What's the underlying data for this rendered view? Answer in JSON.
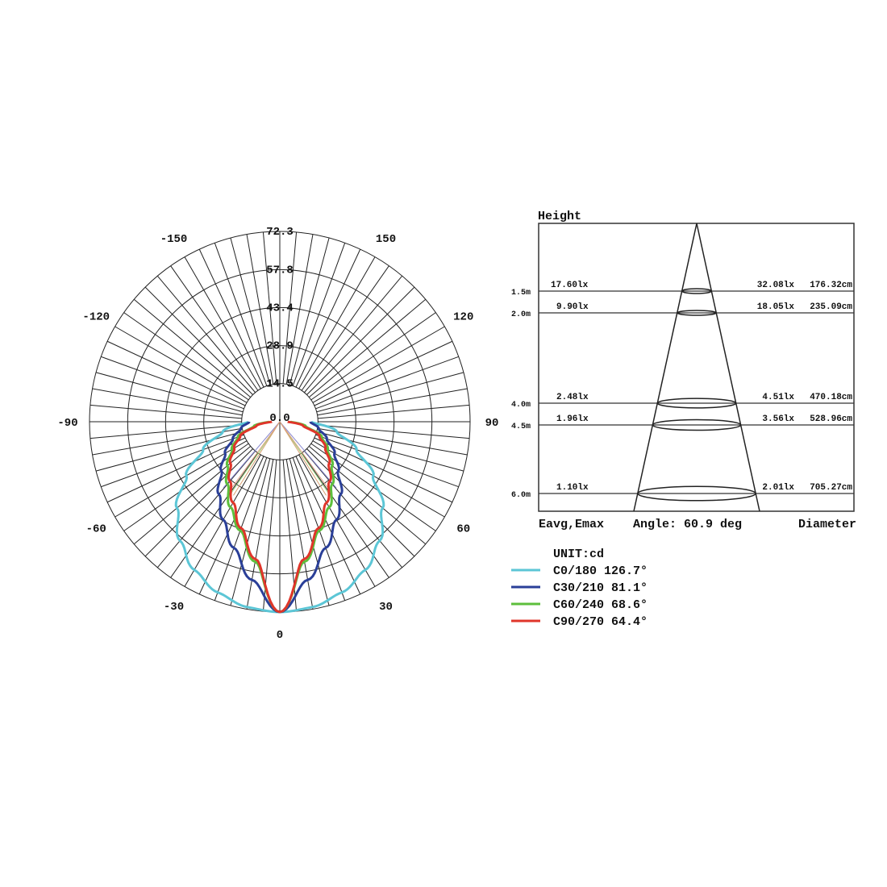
{
  "chart_data": [
    {
      "type": "polar",
      "unit": "UNIT:cd",
      "radial_ticks": [
        "0.0",
        "14.5",
        "28.9",
        "43.4",
        "57.8",
        "72.3"
      ],
      "radial_values": [
        0,
        14.5,
        28.9,
        43.4,
        57.8,
        72.3
      ],
      "rmax": 72.3,
      "angle_labels": [
        "0",
        "30",
        "60",
        "90",
        "120",
        "150",
        "-30",
        "-60",
        "-90",
        "-120",
        "-150"
      ],
      "angle_label_values": [
        0,
        30,
        60,
        90,
        120,
        150,
        -30,
        -60,
        -90,
        -120,
        -150
      ],
      "grid": true,
      "angles_deg": [
        0,
        10,
        20,
        30,
        40,
        50,
        60,
        70,
        80,
        90
      ],
      "series": [
        {
          "name": "C0/180 126.7°",
          "color": "#5cc6d6",
          "beam_angle": 126.7,
          "values": [
            72.3,
            71.5,
            69,
            65,
            59,
            51,
            41,
            31,
            22,
            12
          ]
        },
        {
          "name": "C30/210 81.1°",
          "color": "#2a3f98",
          "beam_angle": 81.1,
          "values": [
            72.3,
            61,
            51,
            43,
            36,
            29,
            24,
            19,
            15,
            11.6
          ]
        },
        {
          "name": "C60/240 68.6°",
          "color": "#5dbf3c",
          "beam_angle": 68.6,
          "values": [
            72.3,
            54,
            44,
            37.5,
            31,
            26,
            21,
            17,
            10,
            4
          ]
        },
        {
          "name": "C90/270 64.4°",
          "color": "#e0352a",
          "beam_angle": 64.4,
          "values": [
            72.3,
            53,
            43,
            35.5,
            29.5,
            24.5,
            20,
            16,
            9,
            3
          ]
        }
      ]
    },
    {
      "type": "table",
      "title": "Height",
      "footer": {
        "left": "Eavg,Emax",
        "center": "Angle: 60.9 deg",
        "right": "Diameter"
      },
      "angle_deg": 60.9,
      "rows": [
        {
          "height": "1.5m",
          "eavg": "17.60lx",
          "emax": "32.08lx",
          "diameter": "176.32cm"
        },
        {
          "height": "2.0m",
          "eavg": "9.90lx",
          "emax": "18.05lx",
          "diameter": "235.09cm"
        },
        {
          "height": "4.0m",
          "eavg": "2.48lx",
          "emax": "4.51lx",
          "diameter": "470.18cm"
        },
        {
          "height": "4.5m",
          "eavg": "1.96lx",
          "emax": "3.56lx",
          "diameter": "528.96cm"
        },
        {
          "height": "6.0m",
          "eavg": "1.10lx",
          "emax": "2.01lx",
          "diameter": "705.27cm"
        }
      ]
    }
  ]
}
